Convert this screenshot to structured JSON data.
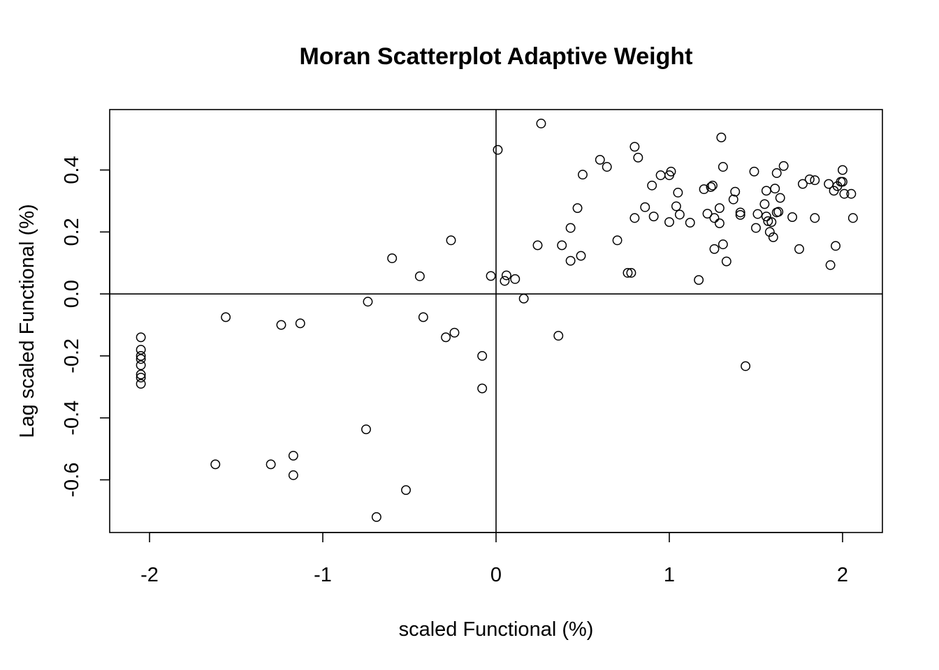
{
  "chart_data": {
    "type": "scatter",
    "title": "Moran Scatterplot Adaptive Weight",
    "xlabel": "scaled Functional (%)",
    "ylabel": "Lag scaled Functional (%)",
    "xlim": [
      -2.23,
      2.23
    ],
    "ylim": [
      -0.77,
      0.595
    ],
    "x_ticks": [
      -2,
      -1,
      0,
      1,
      2
    ],
    "x_tick_labels": [
      "-2",
      "-1",
      "0",
      "1",
      "2"
    ],
    "y_ticks": [
      -0.6,
      -0.4,
      -0.2,
      0.0,
      0.2,
      0.4
    ],
    "y_tick_labels": [
      "-0.6",
      "-0.4",
      "-0.2",
      "0.0",
      "0.2",
      "0.4"
    ],
    "reference_lines": {
      "x": 0,
      "y": 0
    },
    "grid": false,
    "points": [
      [
        -2.05,
        -0.14
      ],
      [
        -2.05,
        -0.18
      ],
      [
        -2.05,
        -0.2
      ],
      [
        -2.05,
        -0.21
      ],
      [
        -2.05,
        -0.23
      ],
      [
        -2.05,
        -0.26
      ],
      [
        -2.05,
        -0.27
      ],
      [
        -2.05,
        -0.29
      ],
      [
        -1.56,
        -0.075
      ],
      [
        -1.24,
        -0.1
      ],
      [
        -1.13,
        -0.095
      ],
      [
        -0.74,
        -0.025
      ],
      [
        -0.6,
        0.115
      ],
      [
        -0.44,
        0.057
      ],
      [
        -0.42,
        -0.075
      ],
      [
        -0.26,
        0.173
      ],
      [
        -0.29,
        -0.14
      ],
      [
        -0.24,
        -0.125
      ],
      [
        -0.03,
        0.058
      ],
      [
        0.01,
        0.465
      ],
      [
        0.05,
        0.042
      ],
      [
        0.06,
        0.06
      ],
      [
        0.11,
        0.048
      ],
      [
        0.16,
        -0.015
      ],
      [
        -0.08,
        -0.2
      ],
      [
        -0.08,
        -0.305
      ],
      [
        0.24,
        0.157
      ],
      [
        0.26,
        0.55
      ],
      [
        0.36,
        -0.135
      ],
      [
        0.38,
        0.157
      ],
      [
        0.43,
        0.107
      ],
      [
        0.43,
        0.213
      ],
      [
        0.47,
        0.277
      ],
      [
        0.49,
        0.123
      ],
      [
        0.5,
        0.385
      ],
      [
        0.6,
        0.433
      ],
      [
        0.64,
        0.41
      ],
      [
        0.7,
        0.173
      ],
      [
        0.76,
        0.068
      ],
      [
        0.78,
        0.068
      ],
      [
        0.8,
        0.475
      ],
      [
        0.8,
        0.245
      ],
      [
        0.82,
        0.44
      ],
      [
        0.86,
        0.28
      ],
      [
        0.9,
        0.35
      ],
      [
        0.91,
        0.25
      ],
      [
        0.95,
        0.383
      ],
      [
        1.0,
        0.383
      ],
      [
        1.01,
        0.395
      ],
      [
        1.0,
        0.232
      ],
      [
        1.04,
        0.283
      ],
      [
        1.05,
        0.327
      ],
      [
        1.06,
        0.256
      ],
      [
        1.12,
        0.23
      ],
      [
        1.17,
        0.045
      ],
      [
        1.2,
        0.338
      ],
      [
        1.22,
        0.259
      ],
      [
        1.24,
        0.345
      ],
      [
        1.25,
        0.35
      ],
      [
        1.26,
        0.245
      ],
      [
        1.26,
        0.145
      ],
      [
        1.29,
        0.228
      ],
      [
        1.29,
        0.277
      ],
      [
        1.3,
        0.505
      ],
      [
        1.31,
        0.41
      ],
      [
        1.31,
        0.16
      ],
      [
        1.33,
        0.105
      ],
      [
        1.37,
        0.305
      ],
      [
        1.38,
        0.33
      ],
      [
        1.41,
        0.263
      ],
      [
        1.41,
        0.255
      ],
      [
        1.44,
        -0.233
      ],
      [
        1.49,
        0.395
      ],
      [
        1.5,
        0.213
      ],
      [
        1.51,
        0.258
      ],
      [
        1.55,
        0.29
      ],
      [
        1.56,
        0.333
      ],
      [
        1.56,
        0.25
      ],
      [
        1.57,
        0.235
      ],
      [
        1.58,
        0.2
      ],
      [
        1.59,
        0.232
      ],
      [
        1.6,
        0.183
      ],
      [
        1.61,
        0.34
      ],
      [
        1.62,
        0.39
      ],
      [
        1.62,
        0.263
      ],
      [
        1.63,
        0.265
      ],
      [
        1.64,
        0.31
      ],
      [
        1.66,
        0.413
      ],
      [
        1.71,
        0.248
      ],
      [
        1.75,
        0.145
      ],
      [
        1.77,
        0.355
      ],
      [
        1.81,
        0.37
      ],
      [
        1.84,
        0.367
      ],
      [
        1.84,
        0.245
      ],
      [
        1.92,
        0.355
      ],
      [
        1.93,
        0.093
      ],
      [
        1.95,
        0.333
      ],
      [
        1.96,
        0.155
      ],
      [
        1.97,
        0.348
      ],
      [
        1.99,
        0.362
      ],
      [
        2.0,
        0.362
      ],
      [
        2.0,
        0.4
      ],
      [
        2.01,
        0.323
      ],
      [
        2.05,
        0.323
      ],
      [
        2.06,
        0.245
      ],
      [
        -1.62,
        -0.55
      ],
      [
        -1.3,
        -0.55
      ],
      [
        -1.17,
        -0.522
      ],
      [
        -1.17,
        -0.585
      ],
      [
        -0.75,
        -0.437
      ],
      [
        -0.52,
        -0.633
      ],
      [
        -0.69,
        -0.72
      ]
    ]
  }
}
